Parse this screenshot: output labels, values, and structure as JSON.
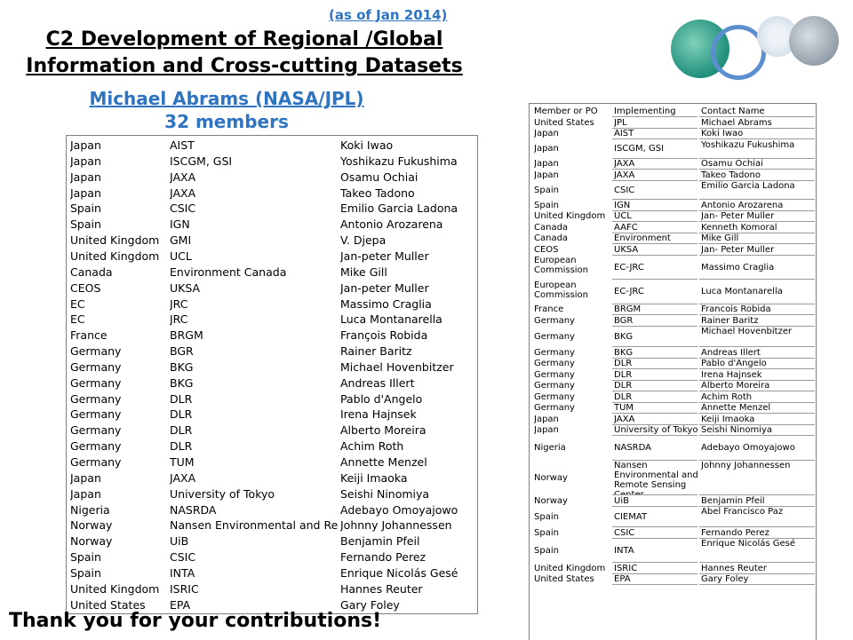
{
  "header": {
    "date_note": "(as of Jan 2014)",
    "title_line1": "C2 Development of Regional /Global",
    "title_line2": "Information and Cross-cutting Datasets",
    "lead_name": "Michael Abrams (NASA/JPL)",
    "member_count": "32 members"
  },
  "colors": {
    "accent": "#2e74c0",
    "circle_teal": "#1f8f7c",
    "circle_blue": "#5b8fd0",
    "circle_grey": "#9aa8b4"
  },
  "left_table": {
    "rows": [
      [
        "Japan",
        "AIST",
        "Koki Iwao"
      ],
      [
        "Japan",
        "ISCGM, GSI",
        "Yoshikazu Fukushima"
      ],
      [
        "Japan",
        "JAXA",
        "Osamu Ochiai"
      ],
      [
        "Japan",
        "JAXA",
        "Takeo Tadono"
      ],
      [
        "Spain",
        "CSIC",
        "Emilio Garcia Ladona"
      ],
      [
        "Spain",
        "IGN",
        "Antonio Arozarena"
      ],
      [
        "United Kingdom",
        "GMI",
        "V. Djepa"
      ],
      [
        "United Kingdom",
        "UCL",
        "Jan-peter Muller"
      ],
      [
        "Canada",
        "Environment Canada",
        "Mike Gill"
      ],
      [
        "CEOS",
        "UKSA",
        "Jan-peter Muller"
      ],
      [
        "EC",
        "JRC",
        "Massimo Craglia"
      ],
      [
        "EC",
        "JRC",
        "Luca Montanarella"
      ],
      [
        "France",
        "BRGM",
        "François Robida"
      ],
      [
        "Germany",
        "BGR",
        "Rainer Baritz"
      ],
      [
        "Germany",
        "BKG",
        "Michael Hovenbitzer"
      ],
      [
        "Germany",
        "BKG",
        "Andreas Illert"
      ],
      [
        "Germany",
        "DLR",
        "Pablo d'Angelo"
      ],
      [
        "Germany",
        "DLR",
        "Irena Hajnsek"
      ],
      [
        "Germany",
        "DLR",
        "Alberto Moreira"
      ],
      [
        "Germany",
        "DLR",
        "Achim Roth"
      ],
      [
        "Germany",
        "TUM",
        "Annette Menzel"
      ],
      [
        "Japan",
        "JAXA",
        "Keiji Imaoka"
      ],
      [
        "Japan",
        "University of Tokyo",
        "Seishi Ninomiya"
      ],
      [
        "Nigeria",
        "NASRDA",
        "Adebayo Omoyajowo"
      ],
      [
        "Norway",
        "Nansen Environmental and Re",
        "Johnny Johannessen"
      ],
      [
        "Norway",
        "UiB",
        "Benjamin Pfeil"
      ],
      [
        "Spain",
        "CSIC",
        "Fernando Perez"
      ],
      [
        "Spain",
        "INTA",
        "Enrique Nicolás Gesé"
      ],
      [
        "United Kingdom",
        "ISRIC",
        "Hannes Reuter"
      ],
      [
        "United States",
        "EPA",
        "Gary Foley"
      ]
    ]
  },
  "right_table": {
    "rows": [
      [
        "Member or PO",
        "Implementing Entity",
        "Contact Name"
      ],
      [
        "United States",
        "JPL",
        "Michael Abrams"
      ],
      [
        "Japan",
        "AIST",
        "Koki Iwao"
      ],
      [
        "Japan",
        "ISCGM, GSI",
        "Yoshikazu Fukushima"
      ],
      [
        "Japan",
        "JAXA",
        "Osamu Ochiai"
      ],
      [
        "Japan",
        "JAXA",
        "Takeo Tadono"
      ],
      [
        "Spain",
        "CSIC",
        "Emilio Garcia Ladona"
      ],
      [
        "Spain",
        "IGN",
        "Antonio Arozarena"
      ],
      [
        "United Kingdom",
        "UCL",
        "Jan- Peter Muller"
      ],
      [
        "Canada",
        "AAFC",
        "Kenneth Komoral"
      ],
      [
        "Canada",
        "Environment Canada",
        "Mike Gill"
      ],
      [
        "CEOS",
        "UKSA",
        "Jan- Peter Muller"
      ],
      [
        "European Commission",
        "EC-JRC",
        "Massimo Craglia"
      ],
      [
        "European Commission",
        "EC-JRC",
        "Luca Montanarella"
      ],
      [
        "France",
        "BRGM",
        "Francois Robida"
      ],
      [
        "Germany",
        "BGR",
        "Rainer Baritz"
      ],
      [
        "Germany",
        "BKG",
        "Michael Hovenbitzer"
      ],
      [
        "Germany",
        "BKG",
        "Andreas Illert"
      ],
      [
        "Germany",
        "DLR",
        "Pablo d'Angelo"
      ],
      [
        "Germany",
        "DLR",
        "Irena Hajnsek"
      ],
      [
        "Germany",
        "DLR",
        "Alberto Moreira"
      ],
      [
        "Germany",
        "DLR",
        "Achim Roth"
      ],
      [
        "Germany",
        "TUM",
        "Annette Menzel"
      ],
      [
        "Japan",
        "JAXA",
        "Keiji Imaoka"
      ],
      [
        "Japan",
        "University of Tokyo",
        "Seishi Ninomiya"
      ],
      [
        "Nigeria",
        "NASRDA",
        "Adebayo Omoyajowo"
      ],
      [
        "Norway",
        "Nansen Environmental and Remote Sensing Center",
        "Johnny Johannessen"
      ],
      [
        "Norway",
        "UiB",
        "Benjamin Pfeil"
      ],
      [
        "Spain",
        "CIEMAT",
        "Abel Francisco Paz"
      ],
      [
        "Spain",
        "CSIC",
        "Fernando Perez"
      ],
      [
        "Spain",
        "INTA",
        "Enrique Nicolás Gesé"
      ],
      [
        "United Kingdom",
        "ISRIC",
        "Hannes Reuter"
      ],
      [
        "United States",
        "EPA",
        "Gary Foley"
      ]
    ]
  },
  "footer": {
    "thanks": "Thank you for your contributions!"
  }
}
